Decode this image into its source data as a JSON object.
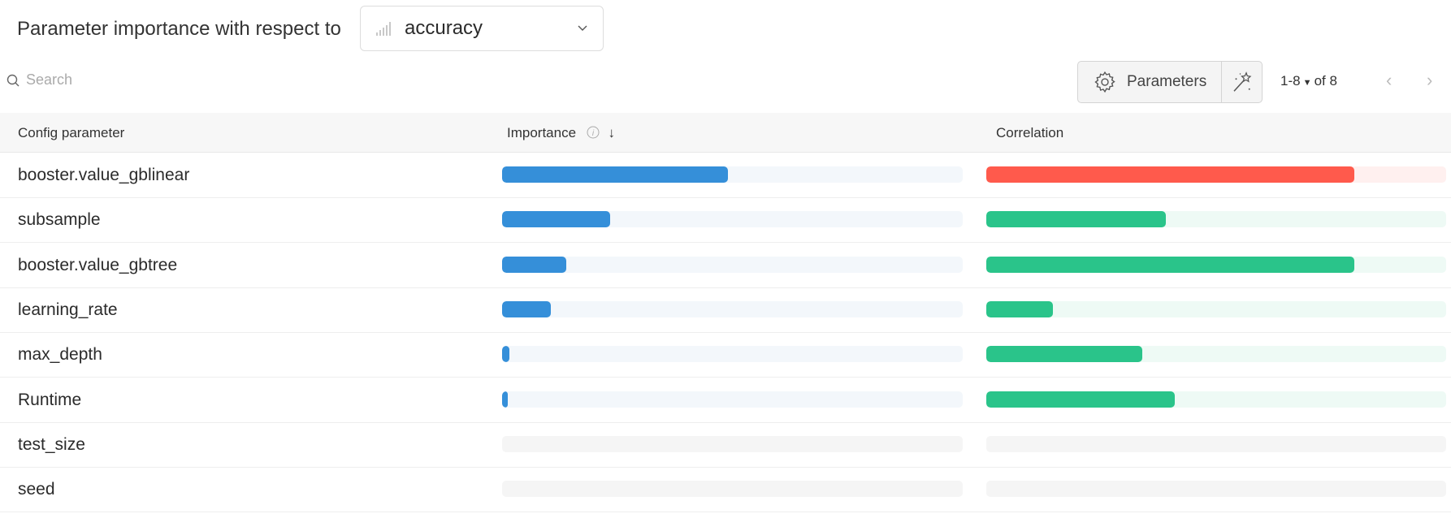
{
  "header": {
    "title": "Parameter importance with respect to",
    "metric": "accuracy",
    "metric_icon": "bar-chart-icon"
  },
  "search": {
    "placeholder": "Search"
  },
  "toolbar": {
    "parameters_label": "Parameters",
    "magic_icon": "magic-wand-icon",
    "range": "1-8",
    "of": "of 8"
  },
  "table": {
    "columns": [
      "Config parameter",
      "Importance",
      "Correlation"
    ],
    "sort": "importance-descending",
    "colors": {
      "importance": "#358fd9",
      "importance_track": "#f3f7fb",
      "positive": "#2ac48a",
      "positive_track": "#eefaf5",
      "negative": "#ff5a4c",
      "negative_track": "#fff0ef",
      "empty_track": "#f5f5f5"
    },
    "rows": [
      {
        "name": "booster.value_gblinear",
        "importance": 0.49,
        "correlation": -0.8
      },
      {
        "name": "subsample",
        "importance": 0.235,
        "correlation": 0.39
      },
      {
        "name": "booster.value_gbtree",
        "importance": 0.14,
        "correlation": 0.8
      },
      {
        "name": "learning_rate",
        "importance": 0.105,
        "correlation": 0.145
      },
      {
        "name": "max_depth",
        "importance": 0.015,
        "correlation": 0.34
      },
      {
        "name": "Runtime",
        "importance": 0.012,
        "correlation": 0.41
      },
      {
        "name": "test_size",
        "importance": null,
        "correlation": null
      },
      {
        "name": "seed",
        "importance": null,
        "correlation": null
      }
    ]
  }
}
